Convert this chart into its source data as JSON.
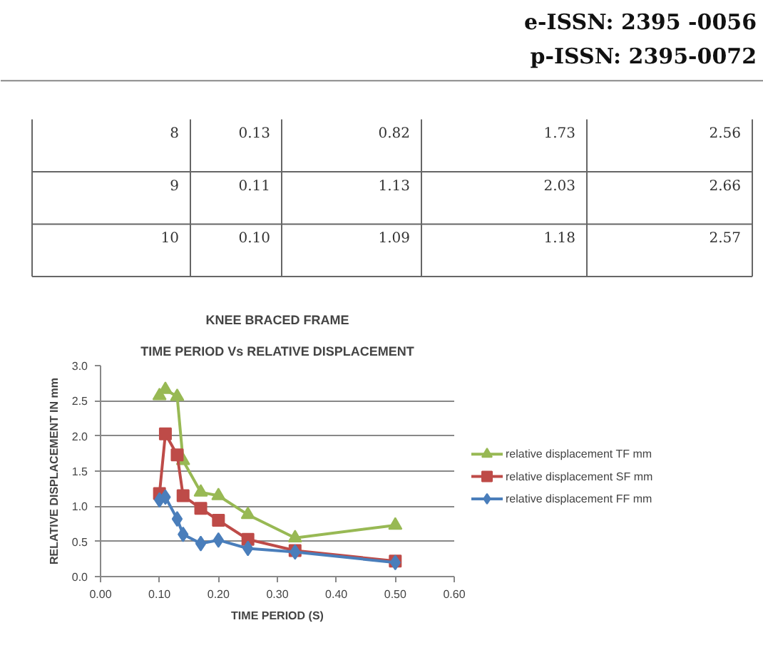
{
  "chart_data": [
    {
      "type": "other",
      "annotations": [
        "e-ISSN: 2395 -0056",
        "p-ISSN: 2395-0072",
        "8",
        "0.13",
        "0.82",
        "1.73",
        "2.56",
        "9",
        "0.11",
        "1.13",
        "2.03",
        "2.66",
        "10",
        "0.10",
        "1.09",
        "1.18",
        "2.57"
      ]
    },
    {
      "type": "line",
      "title": "KNEE BRACED FRAME",
      "subtitle": "TIME PERIOD Vs RELATIVE DISPLACEMENT",
      "xlabel": "TIME PERIOD (S)",
      "ylabel": "RELATIVE DISPLACEMENT IN mm",
      "x": [
        0.1,
        0.11,
        0.13,
        0.14,
        0.17,
        0.2,
        0.25,
        0.33,
        0.5
      ],
      "series": [
        {
          "name": "relative displacement  FF mm",
          "color": "#4a7ebb",
          "marker": "diamond",
          "values": [
            1.09,
            1.13,
            0.82,
            0.6,
            0.47,
            0.52,
            0.4,
            0.35,
            0.2
          ]
        },
        {
          "name": "relative displacement  SF mm",
          "color": "#be4b48",
          "marker": "square",
          "values": [
            1.18,
            2.03,
            1.73,
            1.15,
            0.97,
            0.8,
            0.53,
            0.37,
            0.22
          ]
        },
        {
          "name": "relative displacement  TF mm",
          "color": "#98b954",
          "marker": "triangle",
          "values": [
            2.57,
            2.66,
            2.56,
            1.65,
            1.2,
            1.15,
            0.88,
            0.55,
            0.73
          ]
        }
      ],
      "xlim": [
        0,
        0.6
      ],
      "ylim": [
        0,
        3
      ],
      "xticks": [
        {
          "value": 0,
          "label": "0.00"
        },
        {
          "value": 0.1,
          "label": "0.10"
        },
        {
          "value": 0.2,
          "label": "0.20"
        },
        {
          "value": 0.3,
          "label": "0.30"
        },
        {
          "value": 0.4,
          "label": "0.40"
        },
        {
          "value": 0.5,
          "label": "0.50"
        },
        {
          "value": 0.6,
          "label": "0.60"
        }
      ],
      "yticks": [
        {
          "value": 0,
          "label": "0.0"
        },
        {
          "value": 0.5,
          "label": "0.5"
        },
        {
          "value": 1,
          "label": "1.0"
        },
        {
          "value": 1.5,
          "label": "1.5"
        },
        {
          "value": 2,
          "label": "2.0"
        },
        {
          "value": 2.5,
          "label": "2.5"
        },
        {
          "value": 3,
          "label": "3.0"
        }
      ],
      "grid": "y",
      "legend": "right"
    }
  ]
}
